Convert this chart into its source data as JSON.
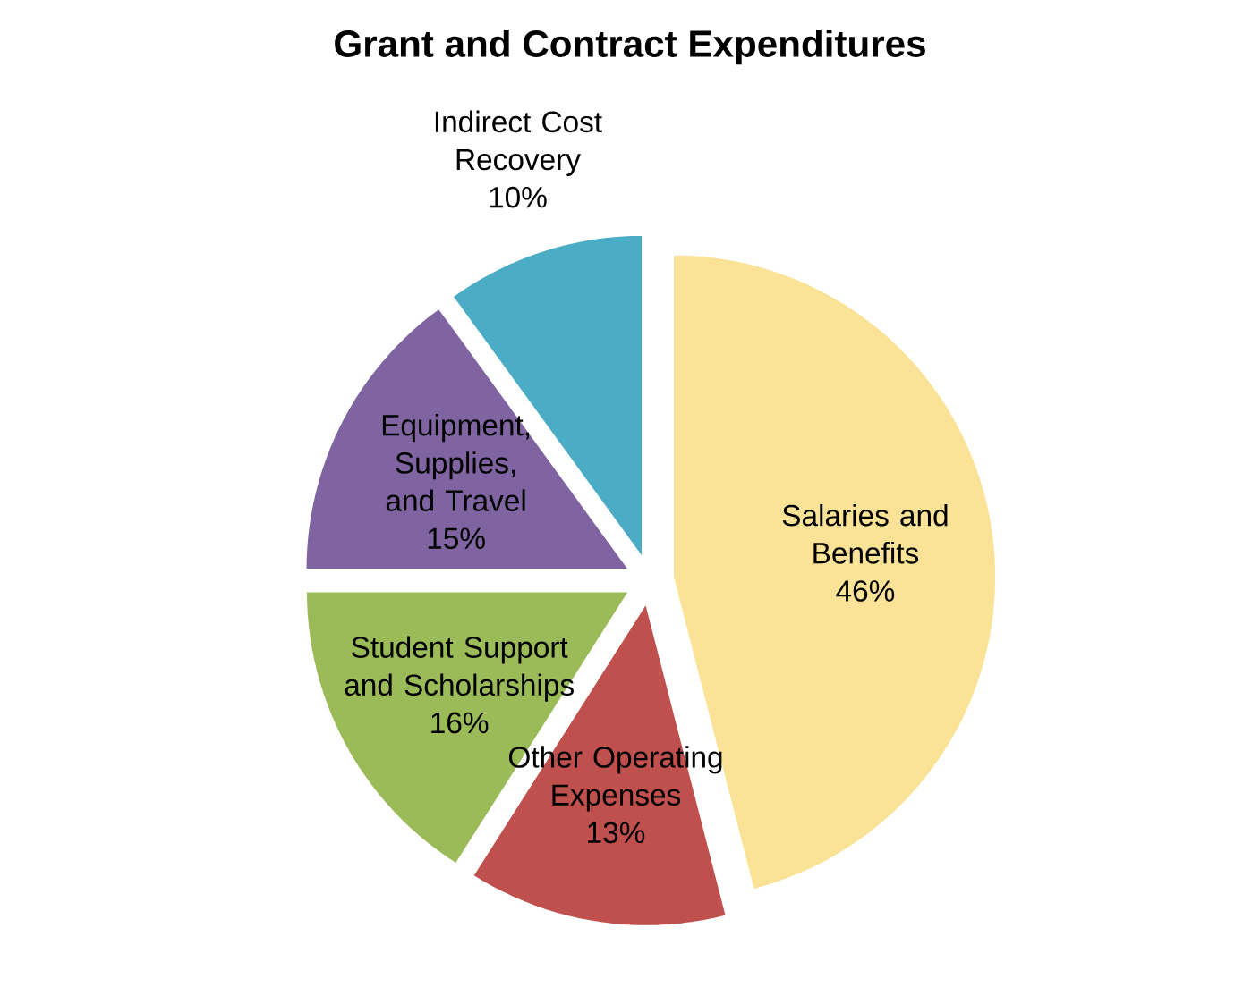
{
  "chart_data": {
    "type": "pie",
    "title": "Grant and Contract Expenditures",
    "categories": [
      "Salaries and Benefits",
      "Other Operating Expenses",
      "Student Support and Scholarships",
      "Equipment, Supplies, and Travel",
      "Indirect Cost Recovery"
    ],
    "values": [
      46,
      13,
      16,
      15,
      10
    ],
    "value_labels": [
      "46%",
      "13%",
      "16%",
      "15%",
      "10%"
    ],
    "colors": [
      "#fae396",
      "#c0504d",
      "#9bbb59",
      "#8064a2",
      "#4bacc6"
    ]
  }
}
